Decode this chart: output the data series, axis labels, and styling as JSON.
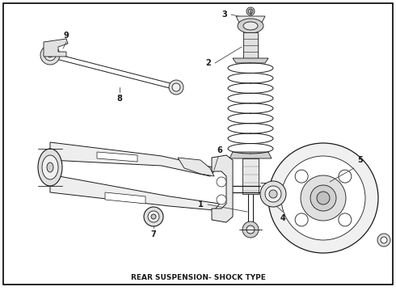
{
  "title": "REAR SUSPENSION- SHOCK TYPE",
  "background_color": "#ffffff",
  "border_color": "#000000",
  "line_color": "#1a1a1a",
  "title_fontsize": 6.5,
  "fig_width": 4.9,
  "fig_height": 3.6,
  "dpi": 100,
  "border_linewidth": 1.2,
  "label_fontsize": 7,
  "label_color": "#000000",
  "lw_thin": 0.6,
  "lw_med": 0.9,
  "lw_thick": 1.3,
  "fc_light": "#f0f0f0",
  "fc_mid": "#d8d8d8",
  "fc_dark": "#b8b8b8"
}
